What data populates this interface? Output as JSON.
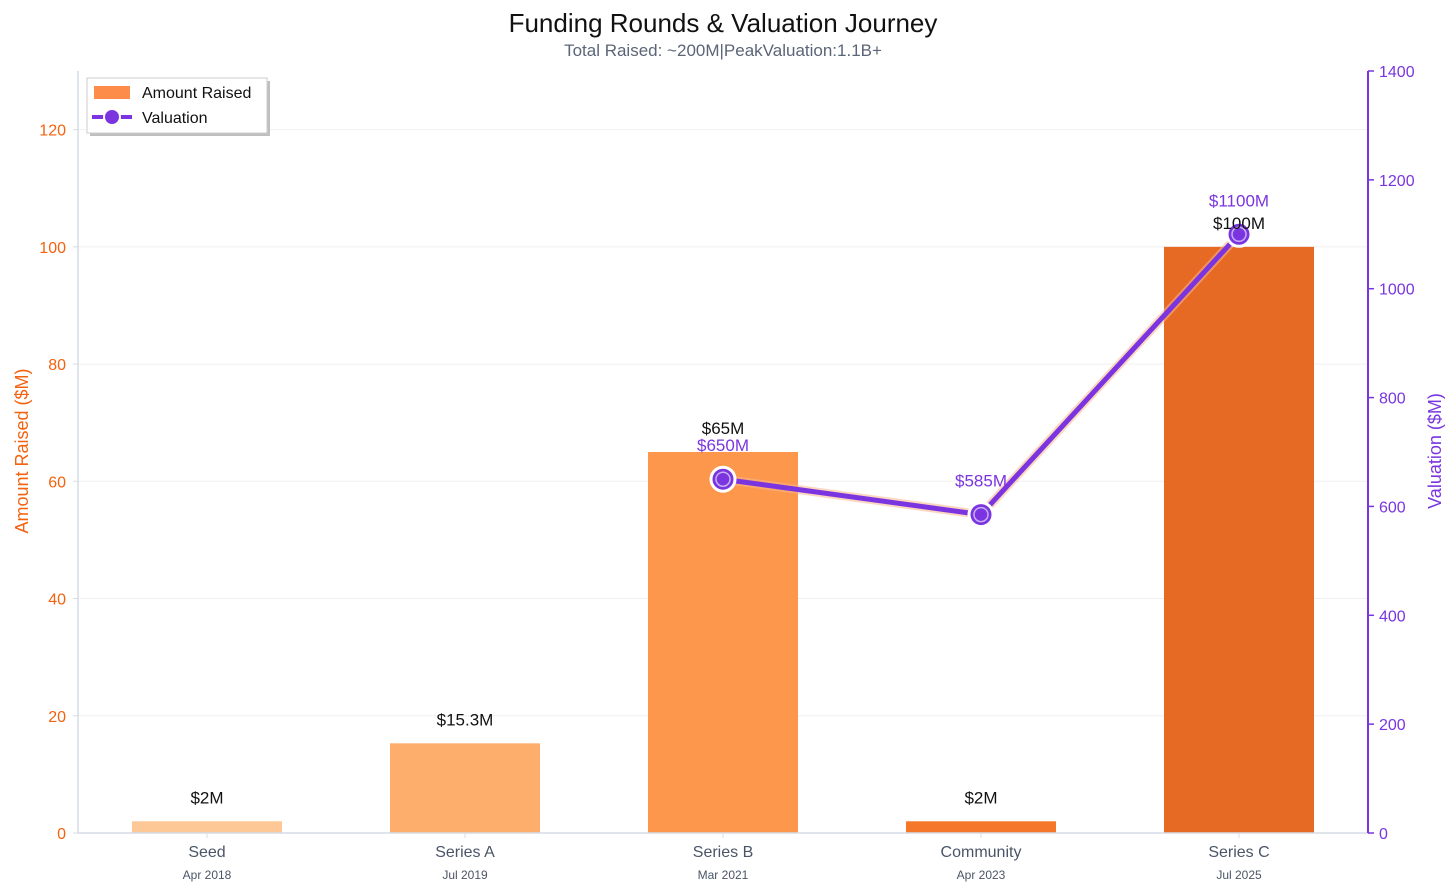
{
  "chart_data": {
    "type": "bar",
    "title": "Funding Rounds & Valuation Journey",
    "subtitle": "Total Raised: ~200M|PeakValuation:1.1B+",
    "categories": [
      "Seed",
      "Series A",
      "Series B",
      "Community",
      "Series C"
    ],
    "dates": [
      "Apr 2018",
      "Jul 2019",
      "Mar 2021",
      "Apr 2023",
      "Jul 2025"
    ],
    "ylabel": "Amount Raised ($M)",
    "y2label": "Valuation ($M)",
    "ylim": [
      0,
      130
    ],
    "y2lim": [
      0,
      1400
    ],
    "yticks": [
      0,
      20,
      40,
      60,
      80,
      100,
      120
    ],
    "y2ticks": [
      0,
      200,
      400,
      600,
      800,
      1000,
      1200,
      1400
    ],
    "grid": true,
    "legend_position": "top-left",
    "series": [
      {
        "name": "Amount Raised",
        "type": "bar",
        "values": [
          2,
          15.3,
          65,
          2,
          100
        ],
        "labels": [
          "$2M",
          "$15.3M",
          "$65M",
          "$2M",
          "$100M"
        ],
        "colors": [
          "#fdc895",
          "#fdad6c",
          "#fd974c",
          "#f4772a",
          "#e66924"
        ],
        "legend_color": "#fd8c4a"
      },
      {
        "name": "Valuation",
        "type": "line",
        "axis": "right",
        "color": "#7a35e0",
        "values": [
          null,
          null,
          650,
          585,
          1100
        ],
        "labels": [
          "",
          "",
          "$650M",
          "$585M",
          "$1100M"
        ]
      }
    ]
  }
}
